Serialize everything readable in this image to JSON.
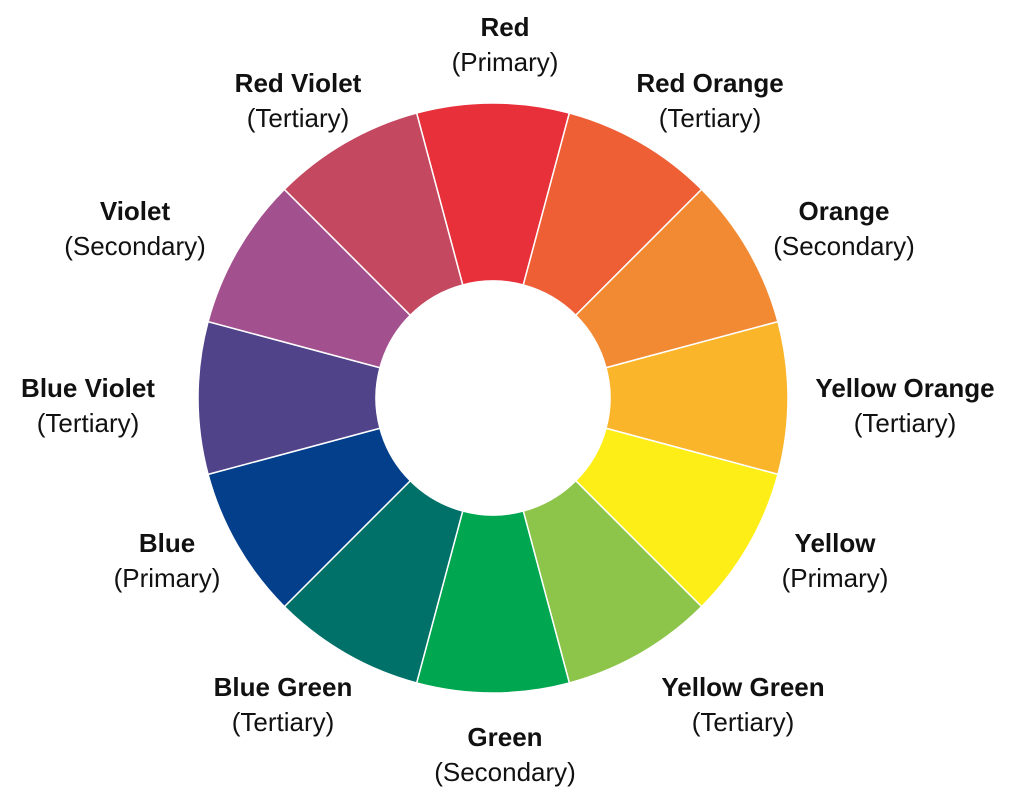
{
  "segments": [
    {
      "name": "Red",
      "type": "(Primary)",
      "color": "#e8303a"
    },
    {
      "name": "Red Orange",
      "type": "(Tertiary)",
      "color": "#ee5f35"
    },
    {
      "name": "Orange",
      "type": "(Secondary)",
      "color": "#f28a33"
    },
    {
      "name": "Yellow Orange",
      "type": "(Tertiary)",
      "color": "#fbb52b"
    },
    {
      "name": "Yellow",
      "type": "(Primary)",
      "color": "#fdee17"
    },
    {
      "name": "Yellow Green",
      "type": "(Tertiary)",
      "color": "#8dc44a"
    },
    {
      "name": "Green",
      "type": "(Secondary)",
      "color": "#00a650"
    },
    {
      "name": "Blue Green",
      "type": "(Tertiary)",
      "color": "#007168"
    },
    {
      "name": "Blue",
      "type": "(Primary)",
      "color": "#033f8a"
    },
    {
      "name": "Blue Violet",
      "type": "(Tertiary)",
      "color": "#51438a"
    },
    {
      "name": "Violet",
      "type": "(Secondary)",
      "color": "#a3508f"
    },
    {
      "name": "Red Violet",
      "type": "(Tertiary)",
      "color": "#c4485f"
    }
  ]
}
